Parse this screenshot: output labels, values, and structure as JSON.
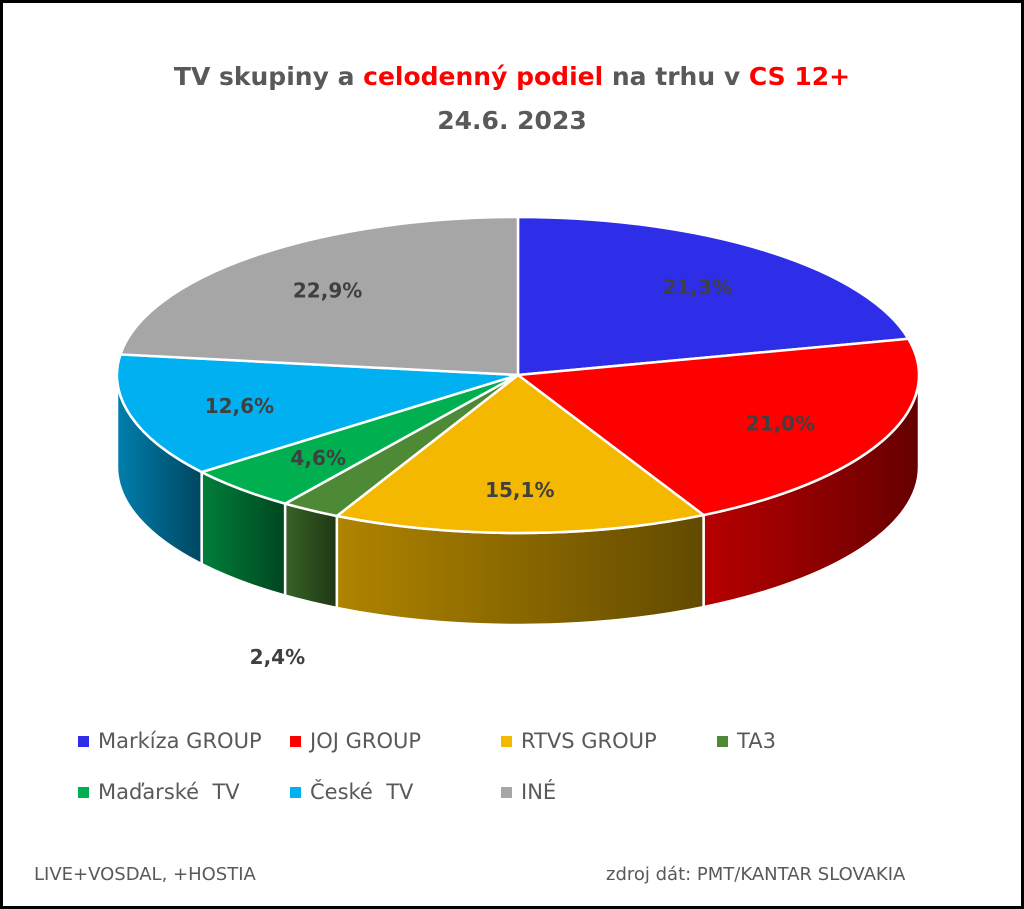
{
  "chart_data": {
    "type": "pie",
    "title_parts": [
      {
        "text": "TV skupiny a ",
        "highlight": false
      },
      {
        "text": "celodenný podiel",
        "highlight": true
      },
      {
        "text": " na trhu v ",
        "highlight": false
      },
      {
        "text": "CS 12+",
        "highlight": true
      }
    ],
    "subtitle": "24.6. 2023",
    "title_color": "#595959",
    "highlight_color": "#ff0000",
    "three_d": true,
    "legend_position": "bottom",
    "slices": [
      {
        "name": "Markíza GROUP",
        "value": 21.3,
        "label": "21,3%",
        "color": "#2e2ee8"
      },
      {
        "name": "JOJ GROUP",
        "value": 21.0,
        "label": "21,0%",
        "color": "#ff0000"
      },
      {
        "name": "RTVS GROUP",
        "value": 15.1,
        "label": "15,1%",
        "color": "#f5b800"
      },
      {
        "name": "TA3",
        "value": 2.4,
        "label": "2,4%",
        "color": "#4e8a35"
      },
      {
        "name": "Maďarské  TV",
        "value": 4.6,
        "label": "4,6%",
        "color": "#00b050"
      },
      {
        "name": "České  TV",
        "value": 12.6,
        "label": "12,6%",
        "color": "#00b0f0"
      },
      {
        "name": "INÉ",
        "value": 22.9,
        "label": "22,9%",
        "color": "#a6a6a6"
      }
    ]
  },
  "footer": {
    "left": "LIVE+VOSDAL, +HOSTIA",
    "right": "zdroj dát: PMT/KANTAR SLOVAKIA"
  }
}
